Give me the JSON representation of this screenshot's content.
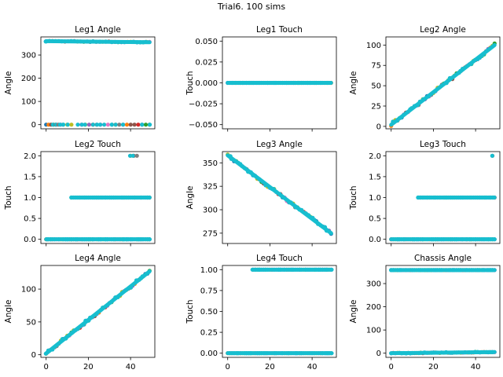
{
  "suptitle": "Trial6. 100 sims",
  "palette": [
    "#1f77b4",
    "#ff7f0e",
    "#2ca02c",
    "#d62728",
    "#9467bd",
    "#8c564b",
    "#e377c2",
    "#7f7f7f",
    "#bcbd22",
    "#17becf"
  ],
  "chart_data": [
    {
      "type": "scatter",
      "title": "Leg1 Angle",
      "xlabel": "",
      "ylabel": "Angle",
      "xlim": [
        -2.5,
        51.5
      ],
      "ylim": [
        -18,
        378
      ],
      "xticks": [
        0,
        20,
        40
      ],
      "xtick_labels_visible": false,
      "yticks": [
        0,
        100,
        200,
        300
      ],
      "series": [
        {
          "kind": "line",
          "x": [
            0,
            49
          ],
          "y": [
            360,
            355
          ],
          "jitter": 1.5,
          "count": 34
        },
        {
          "kind": "cluster",
          "x": [
            0,
            8
          ],
          "y": 0,
          "count": 8
        },
        {
          "kind": "cluster",
          "x": [
            10,
            12
          ],
          "y": 0,
          "count": 2
        },
        {
          "kind": "cluster",
          "x": [
            15,
            49
          ],
          "y": 0,
          "count": 20
        }
      ]
    },
    {
      "type": "scatter",
      "title": "Leg1 Touch",
      "xlabel": "",
      "ylabel": "Touch",
      "xlim": [
        -2.5,
        51.5
      ],
      "ylim": [
        -0.055,
        0.055
      ],
      "xticks": [
        0,
        20,
        40
      ],
      "xtick_labels_visible": false,
      "yticks": [
        -0.05,
        -0.025,
        0.0,
        0.025,
        0.05
      ],
      "ytick_labels": [
        "−0.050",
        "−0.025",
        "0.000",
        "0.025",
        "0.050"
      ],
      "series": [
        {
          "kind": "line",
          "x": [
            0,
            49
          ],
          "y": [
            0,
            0
          ],
          "jitter": 0,
          "count": 50
        }
      ]
    },
    {
      "type": "scatter",
      "title": "Leg2 Angle",
      "xlabel": "",
      "ylabel": "Angle",
      "xlim": [
        -2.5,
        51.5
      ],
      "ylim": [
        -3,
        110
      ],
      "xticks": [
        0,
        20,
        40
      ],
      "xtick_labels_visible": false,
      "yticks": [
        0,
        25,
        50,
        75,
        100
      ],
      "series": [
        {
          "kind": "line",
          "x": [
            0,
            49
          ],
          "y": [
            2,
            100
          ],
          "jitter": 2,
          "count": 50
        }
      ]
    },
    {
      "type": "scatter",
      "title": "Leg2 Touch",
      "xlabel": "",
      "ylabel": "Touch",
      "xlim": [
        -2.5,
        51.5
      ],
      "ylim": [
        -0.1,
        2.1
      ],
      "xticks": [
        0,
        20,
        40
      ],
      "xtick_labels_visible": false,
      "yticks": [
        0.0,
        0.5,
        1.0,
        1.5,
        2.0
      ],
      "ytick_labels": [
        "0.0",
        "0.5",
        "1.0",
        "1.5",
        "2.0"
      ],
      "series": [
        {
          "kind": "line",
          "x": [
            0,
            49
          ],
          "y": [
            0,
            0
          ],
          "jitter": 0,
          "count": 50
        },
        {
          "kind": "line",
          "x": [
            12,
            49
          ],
          "y": [
            1,
            1
          ],
          "jitter": 0,
          "count": 38
        },
        {
          "kind": "cluster",
          "x": [
            40,
            43
          ],
          "y": 2,
          "count": 3
        }
      ]
    },
    {
      "type": "scatter",
      "title": "Leg3 Angle",
      "xlabel": "",
      "ylabel": "Angle",
      "xlim": [
        -2.5,
        51.5
      ],
      "ylim": [
        264,
        362
      ],
      "xticks": [
        0,
        20,
        40
      ],
      "xtick_labels_visible": false,
      "yticks": [
        275,
        300,
        325,
        350
      ],
      "series": [
        {
          "kind": "line",
          "x": [
            0,
            49
          ],
          "y": [
            358,
            275
          ],
          "jitter": 1.5,
          "count": 50
        }
      ]
    },
    {
      "type": "scatter",
      "title": "Leg3 Touch",
      "xlabel": "",
      "ylabel": "Touch",
      "xlim": [
        -2.5,
        51.5
      ],
      "ylim": [
        -0.1,
        2.1
      ],
      "xticks": [
        0,
        20,
        40
      ],
      "xtick_labels_visible": false,
      "yticks": [
        0.0,
        0.5,
        1.0,
        1.5,
        2.0
      ],
      "ytick_labels": [
        "0.0",
        "0.5",
        "1.0",
        "1.5",
        "2.0"
      ],
      "series": [
        {
          "kind": "line",
          "x": [
            0,
            49
          ],
          "y": [
            0,
            0
          ],
          "jitter": 0,
          "count": 50
        },
        {
          "kind": "line",
          "x": [
            13,
            49
          ],
          "y": [
            1,
            1
          ],
          "jitter": 0,
          "count": 37
        },
        {
          "kind": "cluster",
          "x": [
            48,
            48
          ],
          "y": 2,
          "count": 1
        }
      ]
    },
    {
      "type": "scatter",
      "title": "Leg4 Angle",
      "xlabel": "",
      "ylabel": "Angle",
      "xlim": [
        -2.5,
        51.5
      ],
      "ylim": [
        -4,
        136
      ],
      "xticks": [
        0,
        20,
        40
      ],
      "xtick_labels_visible": true,
      "yticks": [
        0,
        50,
        100
      ],
      "series": [
        {
          "kind": "line",
          "x": [
            0,
            49
          ],
          "y": [
            2,
            127
          ],
          "jitter": 2,
          "count": 50
        }
      ]
    },
    {
      "type": "scatter",
      "title": "Leg4 Touch",
      "xlabel": "",
      "ylabel": "Touch",
      "xlim": [
        -2.5,
        51.5
      ],
      "ylim": [
        -0.05,
        1.05
      ],
      "xticks": [
        0,
        20,
        40
      ],
      "xtick_labels_visible": true,
      "yticks": [
        0.0,
        0.25,
        0.5,
        0.75,
        1.0
      ],
      "ytick_labels": [
        "0.00",
        "0.25",
        "0.50",
        "0.75",
        "1.00"
      ],
      "series": [
        {
          "kind": "line",
          "x": [
            0,
            49
          ],
          "y": [
            0,
            0
          ],
          "jitter": 0,
          "count": 50
        },
        {
          "kind": "line",
          "x": [
            12,
            49
          ],
          "y": [
            1,
            1
          ],
          "jitter": 0,
          "count": 38
        }
      ]
    },
    {
      "type": "scatter",
      "title": "Chassis Angle",
      "xlabel": "",
      "ylabel": "Angle",
      "xlim": [
        -2.5,
        51.5
      ],
      "ylim": [
        -18,
        378
      ],
      "xticks": [
        0,
        20,
        40
      ],
      "xtick_labels_visible": true,
      "yticks": [
        0,
        100,
        200,
        300
      ],
      "series": [
        {
          "kind": "line",
          "x": [
            0,
            49
          ],
          "y": [
            358,
            358
          ],
          "jitter": 0,
          "count": 50
        },
        {
          "kind": "line",
          "x": [
            0,
            49
          ],
          "y": [
            0,
            5
          ],
          "jitter": 1.5,
          "count": 50
        }
      ]
    }
  ]
}
